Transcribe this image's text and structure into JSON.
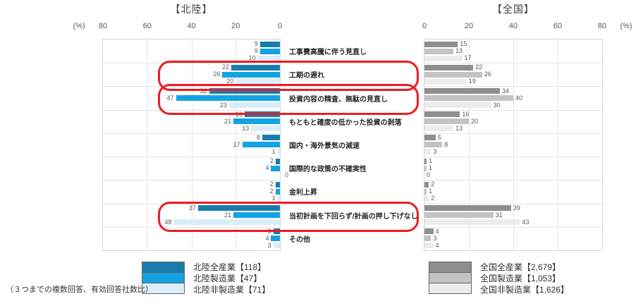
{
  "note": "（３つまでの複数回答、有効回答社数比）",
  "chart_data": {
    "type": "bar",
    "orientation": "horizontal",
    "unit": "%",
    "categories": [
      "工事費高騰に伴う見直し",
      "工期の遅れ",
      "投資内容の精査、無駄の見直し",
      "もともと確度の低かった投資の剥落",
      "国内・海外景気の減速",
      "国際的な政策の不確実性",
      "金利上昇",
      "当初計画を下回らず/計画の押し下げなし",
      "その他"
    ],
    "highlighted_indices": [
      1,
      2,
      7
    ],
    "highlight_color": "#ed1c24",
    "panels": [
      {
        "title": "【北陸】",
        "side": "left",
        "direction": "right-to-left",
        "xlim": [
          0,
          80
        ],
        "ticks": [
          "80",
          "60",
          "40",
          "20",
          "0"
        ],
        "pct_label": "(%)",
        "series": [
          {
            "name": "北陸全産業【118】",
            "color": "#187dad",
            "values": [
              9,
              22,
              32,
              16,
              8,
              2,
              2,
              37,
              3
            ]
          },
          {
            "name": "北陸製造業【47】",
            "color": "#12a3e2",
            "values": [
              9,
              26,
              47,
              21,
              17,
              4,
              2,
              21,
              4
            ]
          },
          {
            "name": "北陸非製造業【71】",
            "color": "#d9edfa",
            "values": [
              10,
              20,
              23,
              13,
              1,
              0,
              1,
              48,
              3
            ]
          }
        ]
      },
      {
        "title": "【全国】",
        "side": "right",
        "direction": "left-to-right",
        "xlim": [
          0,
          80
        ],
        "ticks": [
          "0",
          "20",
          "40",
          "60",
          "80"
        ],
        "pct_label": "(%)",
        "series": [
          {
            "name": "全国全産業【2,679】",
            "color": "#8e8e8e",
            "values": [
              15,
              22,
              34,
              16,
              5,
              1,
              2,
              39,
              4
            ]
          },
          {
            "name": "全国製造業【1,053】",
            "color": "#c3c3c3",
            "values": [
              13,
              26,
              40,
              20,
              8,
              1,
              1,
              31,
              3
            ]
          },
          {
            "name": "全国非製造業【1,626】",
            "color": "#ececec",
            "values": [
              17,
              19,
              30,
              13,
              3,
              0,
              2,
              43,
              4
            ]
          }
        ]
      }
    ]
  }
}
